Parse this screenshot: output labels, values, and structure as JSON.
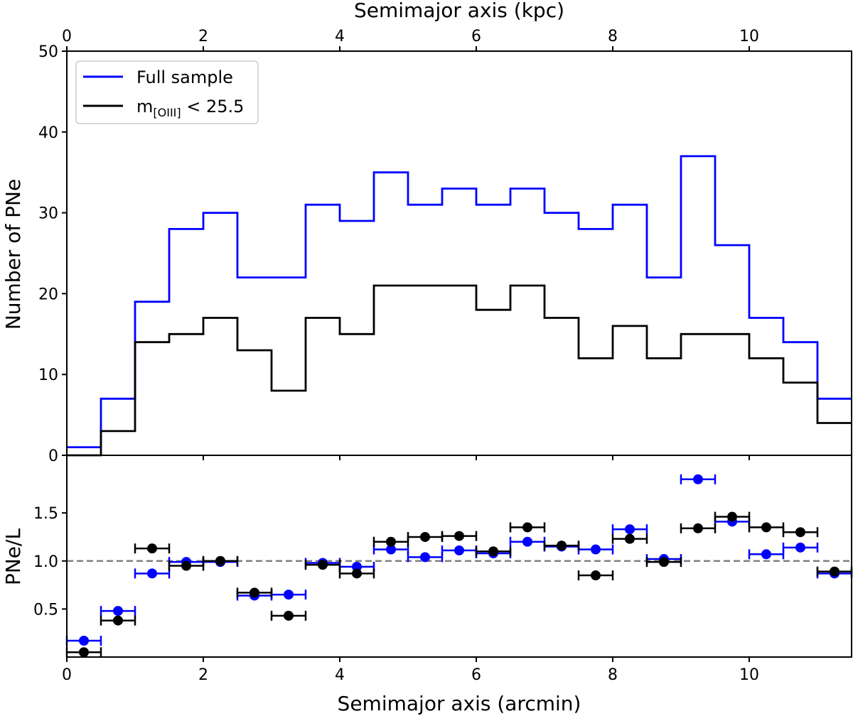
{
  "chart_data": [
    {
      "type": "step",
      "panel": "top",
      "xlabel": "Semimajor axis (arcmin)",
      "ylabel": "Number of PNe",
      "secondary_xlabel": "Semimajor axis (kpc)",
      "xlim": [
        0,
        11.5
      ],
      "ylim": [
        0,
        50
      ],
      "xticks": [
        0,
        2,
        4,
        6,
        8,
        10
      ],
      "yticks": [
        0,
        10,
        20,
        30,
        40,
        50
      ],
      "secondary_xticks": [
        0,
        2,
        4,
        6,
        8,
        10
      ],
      "secondary_xlim": [
        0,
        11.5
      ],
      "bin_edges": [
        0,
        0.5,
        1,
        1.5,
        2,
        2.5,
        3,
        3.5,
        4,
        4.5,
        5,
        5.5,
        6,
        6.5,
        7,
        7.5,
        8,
        8.5,
        9,
        9.5,
        10,
        10.5,
        11,
        11.5
      ],
      "legend_position": "upper-left",
      "series": [
        {
          "name": "Full sample",
          "color": "#0000ff",
          "values": [
            1,
            7,
            19,
            28,
            30,
            22,
            22,
            31,
            29,
            35,
            31,
            33,
            31,
            33,
            30,
            28,
            31,
            22,
            37,
            26,
            17,
            14,
            7
          ]
        },
        {
          "name": "m[OIII] < 25.5",
          "color": "#000000",
          "values": [
            0,
            3,
            14,
            15,
            17,
            13,
            8,
            17,
            15,
            21,
            21,
            21,
            18,
            21,
            17,
            12,
            16,
            12,
            15,
            15,
            12,
            9,
            4
          ]
        }
      ]
    },
    {
      "type": "scatter",
      "panel": "bottom",
      "xlabel": "Semimajor axis (arcmin)",
      "ylabel": "PNe/L",
      "xlim": [
        0,
        11.5
      ],
      "ylim": [
        0,
        2.1
      ],
      "xticks": [
        0,
        2,
        4,
        6,
        8,
        10
      ],
      "yticks": [
        0.5,
        1.0,
        1.5
      ],
      "reference_line": 1.0,
      "x_error": 0.25,
      "x": [
        0.25,
        0.75,
        1.25,
        1.75,
        2.25,
        2.75,
        3.25,
        3.75,
        4.25,
        4.75,
        5.25,
        5.75,
        6.25,
        6.75,
        7.25,
        7.75,
        8.25,
        8.75,
        9.25,
        9.75,
        10.25,
        10.75,
        11.25
      ],
      "series": [
        {
          "name": "Full sample",
          "color": "#0000ff",
          "values": [
            0.17,
            0.48,
            0.87,
            0.99,
            0.99,
            0.64,
            0.65,
            0.98,
            0.94,
            1.12,
            1.04,
            1.11,
            1.08,
            1.2,
            1.15,
            1.12,
            1.33,
            1.02,
            1.85,
            1.41,
            1.07,
            1.14,
            0.87
          ]
        },
        {
          "name": "m[OIII] < 25.5",
          "color": "#000000",
          "values": [
            0.05,
            0.38,
            1.13,
            0.95,
            1.0,
            0.67,
            0.43,
            0.96,
            0.87,
            1.2,
            1.25,
            1.26,
            1.1,
            1.35,
            1.16,
            0.85,
            1.23,
            0.99,
            1.34,
            1.46,
            1.35,
            1.3,
            0.89
          ]
        }
      ]
    }
  ],
  "legend": {
    "full_sample": "Full sample",
    "mag_cut_base": "m",
    "mag_cut_subscript": "[OIII]",
    "mag_cut_rest": " < 25.5"
  }
}
